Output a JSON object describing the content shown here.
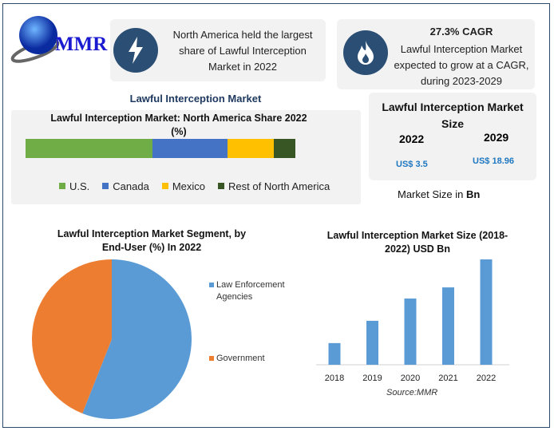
{
  "logo": {
    "text": "MMR"
  },
  "card1": {
    "icon": "lightning-icon",
    "text": "North America held the largest share of Lawful Interception Market in 2022"
  },
  "card2": {
    "icon": "flame-icon",
    "cagr": "27.3% CAGR",
    "text": "Lawful Interception Market expected to grow at a CAGR, during 2023-2029"
  },
  "section_title": "Lawful Interception Market",
  "size_card": {
    "title": "Lawful Interception Market Size",
    "year1": "2022",
    "year2": "2029",
    "value1": "US$ 3.5",
    "value2": "US$ 18.96",
    "note_prefix": "Market Size in ",
    "note_unit": "Bn"
  },
  "colors": {
    "navy": "#2b4e74",
    "blue_text": "#1f77c0",
    "bar_blue": "#5b9bd5",
    "pie_orange": "#ed7d31"
  },
  "chart_data": [
    {
      "type": "bar",
      "stacked": true,
      "orientation": "horizontal",
      "title": "Lawful Interception Market: North America Share 2022 (%)",
      "series": [
        {
          "name": "U.S.",
          "value": 47,
          "color": "#70ad47"
        },
        {
          "name": "Canada",
          "value": 28,
          "color": "#4472c4"
        },
        {
          "name": "Mexico",
          "value": 17,
          "color": "#ffc000"
        },
        {
          "name": "Rest of North America",
          "value": 8,
          "color": "#375623"
        }
      ],
      "legend": "bottom"
    },
    {
      "type": "pie",
      "title": "Lawful Interception Market Segment, by End-User (%) In 2022",
      "slices": [
        {
          "name": "Law Enforcement Agencies",
          "value": 56,
          "color": "#5b9bd5"
        },
        {
          "name": "Government",
          "value": 44,
          "color": "#ed7d31"
        }
      ],
      "legend": "right"
    },
    {
      "type": "bar",
      "title": "Lawful Interception Market Size (2018-2022) USD Bn",
      "categories": [
        "2018",
        "2019",
        "2020",
        "2021",
        "2022"
      ],
      "values": [
        0.72,
        1.46,
        2.2,
        2.57,
        3.5
      ],
      "color": "#5b9bd5",
      "grid": false,
      "source": "Source:MMR"
    }
  ]
}
